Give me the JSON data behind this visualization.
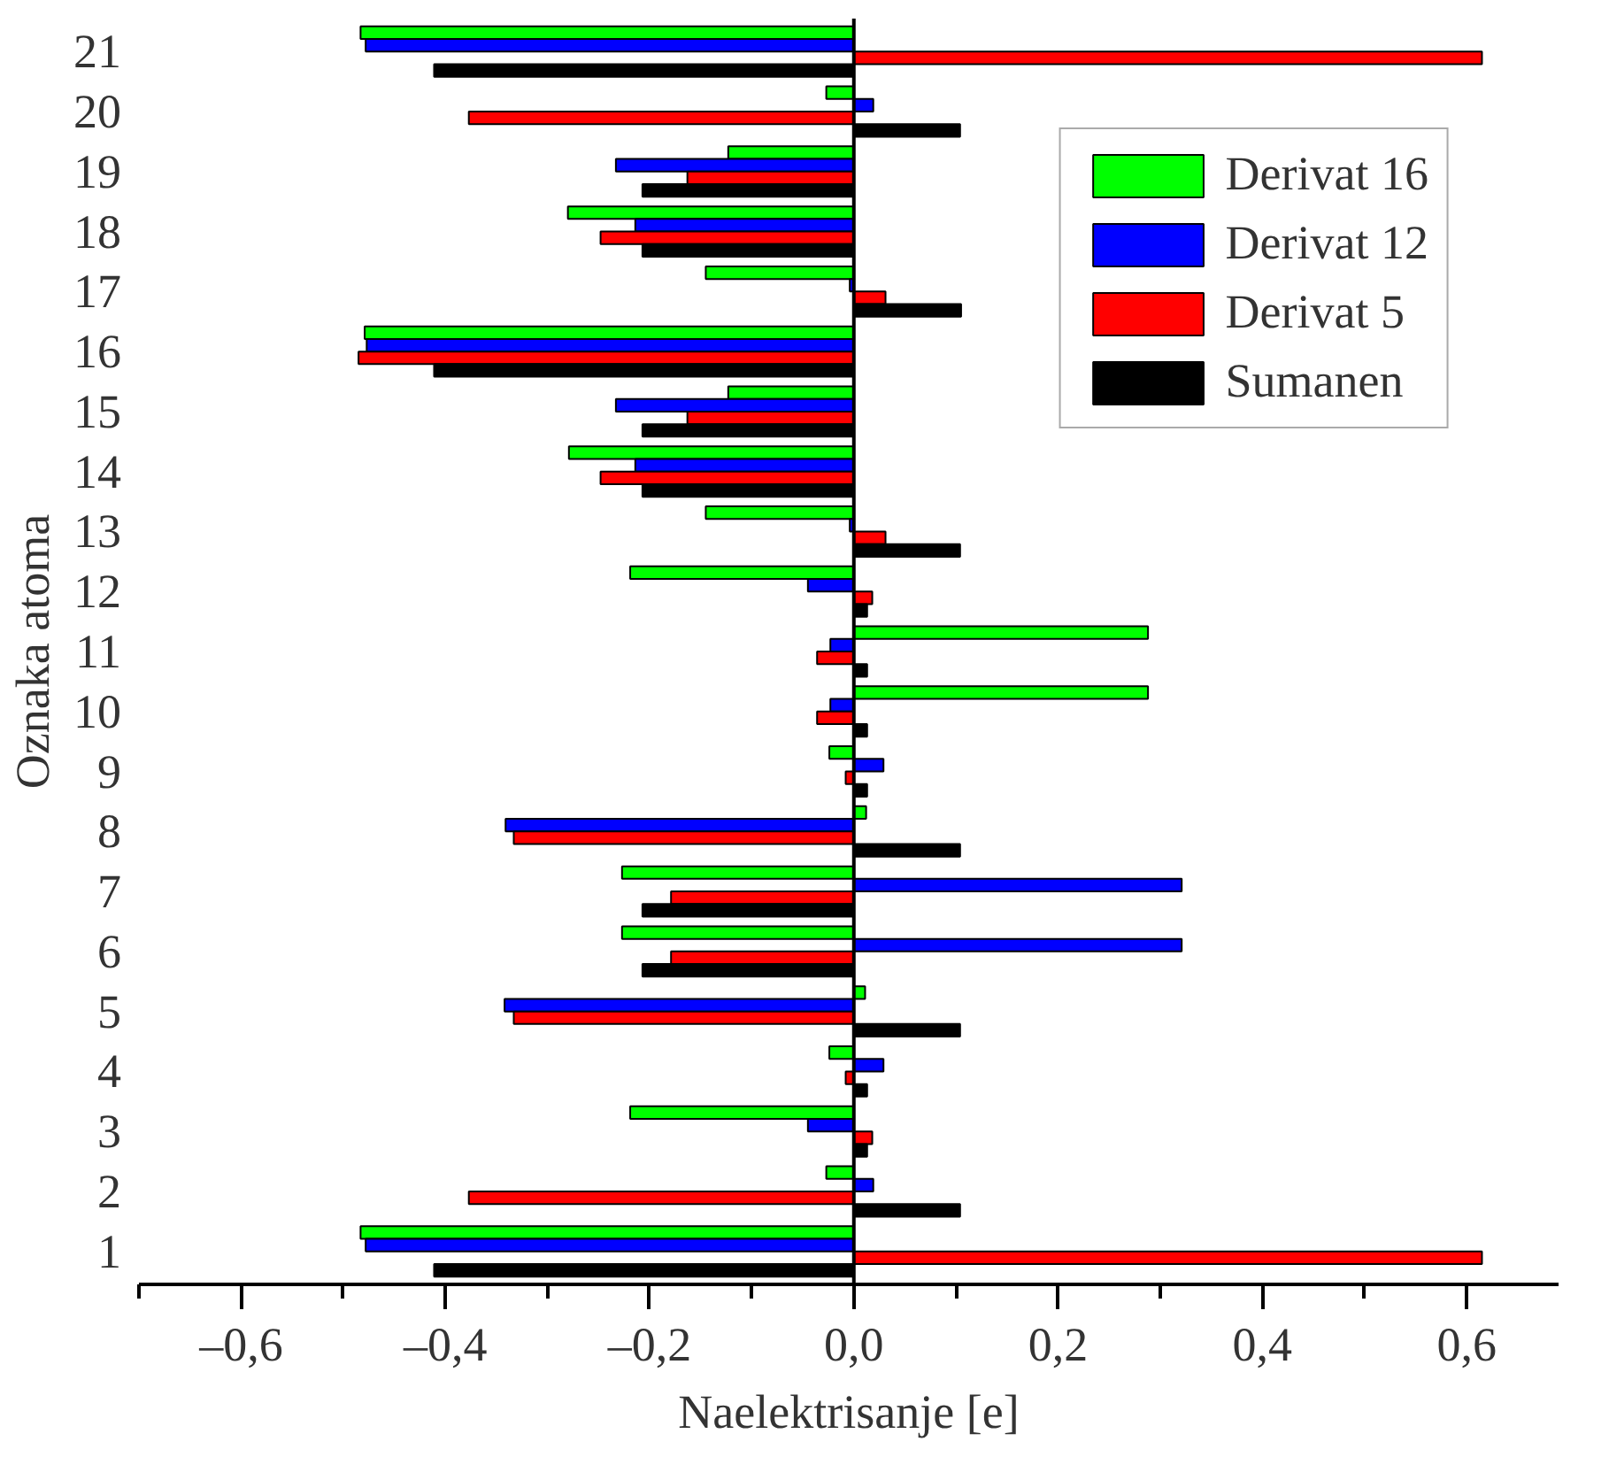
{
  "chart_data": {
    "type": "bar",
    "orientation": "horizontal",
    "xlabel": "Naelektrisanje [e]",
    "ylabel": "Oznaka atoma",
    "categories": [
      "21",
      "20",
      "19",
      "18",
      "17",
      "16",
      "15",
      "14",
      "13",
      "12",
      "11",
      "10",
      "9",
      "8",
      "7",
      "6",
      "5",
      "4",
      "3",
      "2",
      "1"
    ],
    "series": [
      {
        "name": "Derivat 16",
        "color": "#00ff00",
        "values": [
          -0.483,
          -0.027,
          -0.123,
          -0.28,
          -0.145,
          -0.479,
          -0.123,
          -0.279,
          -0.145,
          -0.219,
          0.288,
          0.288,
          -0.024,
          0.012,
          -0.227,
          -0.227,
          0.011,
          -0.024,
          -0.219,
          -0.027,
          -0.483
        ]
      },
      {
        "name": "Derivat 12",
        "color": "#0000ff",
        "values": [
          -0.478,
          0.019,
          -0.233,
          -0.214,
          -0.004,
          -0.477,
          -0.233,
          -0.214,
          -0.004,
          -0.045,
          -0.023,
          -0.023,
          0.029,
          -0.341,
          0.321,
          0.321,
          -0.342,
          0.029,
          -0.045,
          0.019,
          -0.478
        ]
      },
      {
        "name": "Derivat 5",
        "color": "#ff0000",
        "values": [
          0.615,
          -0.377,
          -0.163,
          -0.248,
          0.031,
          -0.485,
          -0.163,
          -0.248,
          0.031,
          0.018,
          -0.036,
          -0.036,
          -0.008,
          -0.333,
          -0.179,
          -0.179,
          -0.333,
          -0.008,
          0.018,
          -0.377,
          0.615
        ]
      },
      {
        "name": "Sumanen",
        "color": "#000000",
        "values": [
          -0.411,
          0.104,
          -0.207,
          -0.207,
          0.105,
          -0.411,
          -0.207,
          -0.207,
          0.104,
          0.013,
          0.013,
          0.013,
          0.013,
          0.104,
          -0.207,
          -0.207,
          0.104,
          0.013,
          0.013,
          0.104,
          -0.411
        ]
      }
    ],
    "xlim": [
      -0.7,
      0.69
    ],
    "xticks": [
      {
        "value": -0.7,
        "label": null
      },
      {
        "value": -0.6,
        "label": "–0,6"
      },
      {
        "value": -0.5,
        "label": null
      },
      {
        "value": -0.4,
        "label": "–0,4"
      },
      {
        "value": -0.3,
        "label": null
      },
      {
        "value": -0.2,
        "label": "–0,2"
      },
      {
        "value": -0.1,
        "label": null
      },
      {
        "value": 0.0,
        "label": "0,0"
      },
      {
        "value": 0.1,
        "label": null
      },
      {
        "value": 0.2,
        "label": "0,2"
      },
      {
        "value": 0.3,
        "label": null
      },
      {
        "value": 0.4,
        "label": "0,4"
      },
      {
        "value": 0.5,
        "label": null
      },
      {
        "value": 0.6,
        "label": "0,6"
      }
    ],
    "ref_lines": [
      {
        "axis": "x",
        "value": 0,
        "color": "#000000"
      }
    ],
    "grid": false,
    "legend": "top right"
  }
}
